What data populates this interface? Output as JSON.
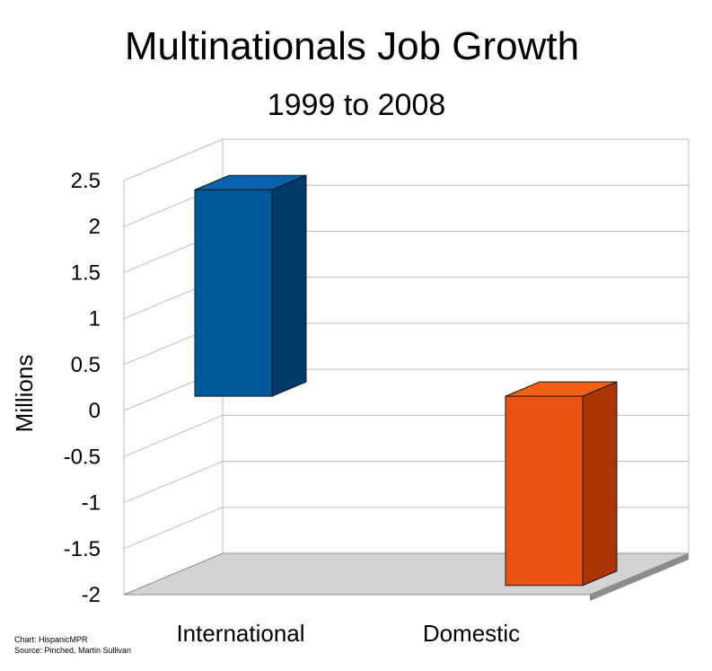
{
  "chart_data": {
    "type": "bar",
    "title": "Multinationals Job Growth",
    "subtitle": "1999 to 2008",
    "ylabel": "Millions",
    "xlabel": "",
    "categories": [
      "International",
      "Domestic"
    ],
    "values": [
      2.4,
      -1.9
    ],
    "ylim": [
      -2,
      2.5
    ],
    "yticks": [
      "2.5",
      "2",
      "1.5",
      "1",
      "0.5",
      "0",
      "-0.5",
      "-1",
      "-1.5",
      "-2"
    ],
    "grid": true,
    "three_d": true,
    "colors": {
      "International": {
        "front": "#00579a",
        "side": "#003a6b",
        "top": "#0a62ad"
      },
      "Domestic": {
        "front": "#ea5211",
        "side": "#ac3405",
        "top": "#f35f15"
      },
      "gridline": "#bdbdbd",
      "floor": "#d3d3d3",
      "floor_edge": "#8c8c8c"
    }
  },
  "footer": {
    "credit": "Chart: HispanicMPR",
    "source": "Source: Pinched, Martin Sullivan"
  }
}
